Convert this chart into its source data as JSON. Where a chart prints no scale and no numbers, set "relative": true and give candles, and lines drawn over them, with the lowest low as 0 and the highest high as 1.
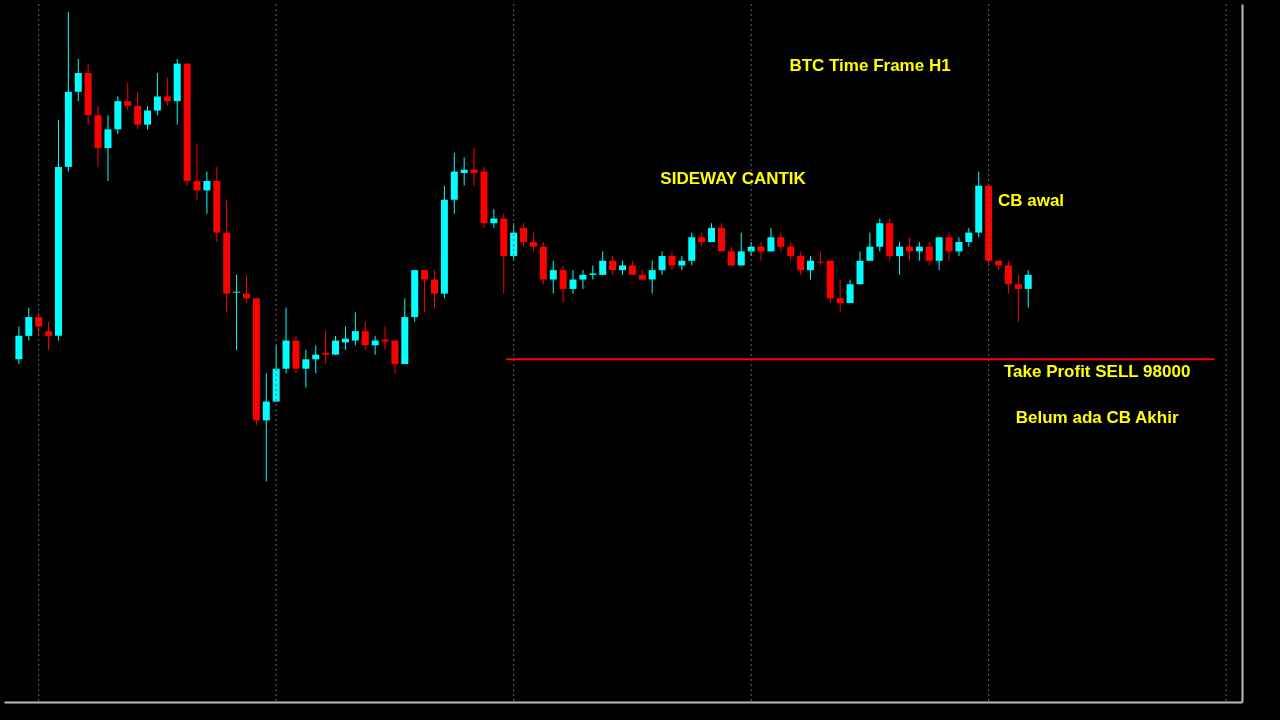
{
  "chart_data": {
    "type": "candlestick",
    "relative": true,
    "title": "BTC Time Frame H1",
    "categories": [
      null,
      null,
      null,
      null,
      null,
      null,
      null,
      null,
      null,
      null,
      null,
      null,
      null,
      null,
      null,
      null,
      null,
      null,
      null,
      null,
      null,
      null,
      null,
      null,
      null,
      null,
      null,
      null,
      null,
      null,
      null,
      null,
      null,
      null,
      null,
      null,
      null,
      null,
      null,
      null,
      null,
      null,
      null,
      null,
      null,
      null,
      null,
      null,
      null,
      null,
      null,
      null,
      null,
      null,
      null,
      null,
      null,
      null,
      null,
      null,
      null,
      null,
      null,
      null,
      null,
      null,
      null,
      null,
      null,
      null,
      null,
      null,
      null,
      null,
      null,
      null,
      null,
      null,
      null,
      null,
      null,
      null,
      null,
      null,
      null,
      null,
      null,
      null,
      null,
      null,
      null,
      null,
      null,
      null,
      null,
      null,
      null,
      null,
      null,
      null,
      null,
      null,
      null
    ],
    "ohlc": [
      [
        0.26,
        0.33,
        0.25,
        0.31
      ],
      [
        0.31,
        0.37,
        0.3,
        0.35
      ],
      [
        0.35,
        0.36,
        0.31,
        0.33
      ],
      [
        0.32,
        0.34,
        0.28,
        0.31
      ],
      [
        0.31,
        0.77,
        0.3,
        0.67
      ],
      [
        0.67,
        1,
        0.66,
        0.83
      ],
      [
        0.83,
        0.9,
        0.81,
        0.87
      ],
      [
        0.87,
        0.89,
        0.76,
        0.78
      ],
      [
        0.78,
        0.8,
        0.67,
        0.71
      ],
      [
        0.71,
        0.78,
        0.64,
        0.75
      ],
      [
        0.75,
        0.82,
        0.74,
        0.81
      ],
      [
        0.81,
        0.85,
        0.79,
        0.8
      ],
      [
        0.8,
        0.83,
        0.75,
        0.76
      ],
      [
        0.76,
        0.8,
        0.75,
        0.79
      ],
      [
        0.79,
        0.87,
        0.78,
        0.82
      ],
      [
        0.82,
        0.86,
        0.8,
        0.81
      ],
      [
        0.81,
        0.9,
        0.76,
        0.89
      ],
      [
        0.89,
        0.89,
        0.63,
        0.64
      ],
      [
        0.64,
        0.72,
        0.6,
        0.62
      ],
      [
        0.62,
        0.66,
        0.57,
        0.64
      ],
      [
        0.64,
        0.67,
        0.51,
        0.53
      ],
      [
        0.53,
        0.6,
        0.36,
        0.4
      ],
      [
        0.402,
        0.44,
        0.28,
        0.404
      ],
      [
        0.4,
        0.44,
        0.38,
        0.39
      ],
      [
        0.39,
        0.39,
        0.12,
        0.13
      ],
      [
        0.13,
        0.23,
        0,
        0.17
      ],
      [
        0.17,
        0.29,
        0.17,
        0.24
      ],
      [
        0.24,
        0.37,
        0.23,
        0.3
      ],
      [
        0.3,
        0.31,
        0.23,
        0.24
      ],
      [
        0.24,
        0.28,
        0.2,
        0.26
      ],
      [
        0.26,
        0.29,
        0.23,
        0.27
      ],
      [
        0.274,
        0.32,
        0.25,
        0.27
      ],
      [
        0.27,
        0.31,
        0.27,
        0.3
      ],
      [
        0.296,
        0.33,
        0.28,
        0.304
      ],
      [
        0.3,
        0.36,
        0.29,
        0.32
      ],
      [
        0.32,
        0.34,
        0.28,
        0.29
      ],
      [
        0.29,
        0.31,
        0.27,
        0.3
      ],
      [
        0.302,
        0.33,
        0.28,
        0.298
      ],
      [
        0.3,
        0.3,
        0.23,
        0.25
      ],
      [
        0.25,
        0.39,
        0.25,
        0.35
      ],
      [
        0.35,
        0.45,
        0.34,
        0.45
      ],
      [
        0.45,
        0.45,
        0.36,
        0.43
      ],
      [
        0.43,
        0.45,
        0.37,
        0.4
      ],
      [
        0.4,
        0.63,
        0.39,
        0.6
      ],
      [
        0.6,
        0.7,
        0.57,
        0.66
      ],
      [
        0.657,
        0.69,
        0.63,
        0.664
      ],
      [
        0.664,
        0.71,
        0.63,
        0.657
      ],
      [
        0.66,
        0.67,
        0.54,
        0.55
      ],
      [
        0.55,
        0.58,
        0.54,
        0.56
      ],
      [
        0.56,
        0.57,
        0.4,
        0.48
      ],
      [
        0.48,
        0.55,
        0.47,
        0.53
      ],
      [
        0.54,
        0.55,
        0.5,
        0.51
      ],
      [
        0.51,
        0.53,
        0.49,
        0.5
      ],
      [
        0.5,
        0.51,
        0.42,
        0.43
      ],
      [
        0.43,
        0.47,
        0.4,
        0.45
      ],
      [
        0.45,
        0.46,
        0.38,
        0.41
      ],
      [
        0.41,
        0.45,
        0.4,
        0.43
      ],
      [
        0.43,
        0.45,
        0.41,
        0.44
      ],
      [
        0.44,
        0.46,
        0.43,
        0.443
      ],
      [
        0.44,
        0.49,
        0.44,
        0.47
      ],
      [
        0.47,
        0.48,
        0.44,
        0.45
      ],
      [
        0.45,
        0.47,
        0.44,
        0.46
      ],
      [
        0.46,
        0.47,
        0.44,
        0.44
      ],
      [
        0.44,
        0.45,
        0.43,
        0.43
      ],
      [
        0.43,
        0.47,
        0.4,
        0.45
      ],
      [
        0.45,
        0.49,
        0.44,
        0.48
      ],
      [
        0.48,
        0.49,
        0.45,
        0.46
      ],
      [
        0.46,
        0.48,
        0.45,
        0.47
      ],
      [
        0.47,
        0.53,
        0.46,
        0.52
      ],
      [
        0.52,
        0.53,
        0.5,
        0.51
      ],
      [
        0.51,
        0.55,
        0.51,
        0.54
      ],
      [
        0.54,
        0.55,
        0.49,
        0.49
      ],
      [
        0.49,
        0.5,
        0.46,
        0.46
      ],
      [
        0.46,
        0.53,
        0.46,
        0.49
      ],
      [
        0.49,
        0.51,
        0.48,
        0.5
      ],
      [
        0.5,
        0.51,
        0.47,
        0.49
      ],
      [
        0.49,
        0.54,
        0.49,
        0.52
      ],
      [
        0.52,
        0.53,
        0.49,
        0.5
      ],
      [
        0.5,
        0.51,
        0.47,
        0.48
      ],
      [
        0.48,
        0.49,
        0.44,
        0.45
      ],
      [
        0.45,
        0.48,
        0.43,
        0.47
      ],
      [
        0.468,
        0.49,
        0.46,
        0.466
      ],
      [
        0.47,
        0.47,
        0.38,
        0.39
      ],
      [
        0.39,
        0.43,
        0.36,
        0.38
      ],
      [
        0.38,
        0.43,
        0.38,
        0.42
      ],
      [
        0.42,
        0.49,
        0.42,
        0.47
      ],
      [
        0.47,
        0.53,
        0.47,
        0.5
      ],
      [
        0.5,
        0.56,
        0.49,
        0.55
      ],
      [
        0.55,
        0.56,
        0.47,
        0.48
      ],
      [
        0.48,
        0.51,
        0.44,
        0.5
      ],
      [
        0.5,
        0.52,
        0.47,
        0.49
      ],
      [
        0.49,
        0.51,
        0.47,
        0.5
      ],
      [
        0.5,
        0.51,
        0.46,
        0.47
      ],
      [
        0.47,
        0.52,
        0.45,
        0.52
      ],
      [
        0.52,
        0.53,
        0.47,
        0.49
      ],
      [
        0.49,
        0.52,
        0.48,
        0.51
      ],
      [
        0.51,
        0.54,
        0.5,
        0.53
      ],
      [
        0.53,
        0.66,
        0.52,
        0.63
      ],
      [
        0.63,
        0.63,
        0.46,
        0.47
      ],
      [
        0.47,
        0.47,
        0.45,
        0.46
      ],
      [
        0.46,
        0.47,
        0.4,
        0.42
      ],
      [
        0.42,
        0.44,
        0.34,
        0.41
      ],
      [
        0.41,
        0.45,
        0.37,
        0.44
      ]
    ],
    "colors": [
      "#00ffff",
      "#00ffff",
      "#ff0000",
      "#ff0000",
      "#00ffff",
      "#00ffff",
      "#00ffff",
      "#ff0000",
      "#ff0000",
      "#00ffff",
      "#00ffff",
      "#ff0000",
      "#ff0000",
      "#00ffff",
      "#00ffff",
      "#ff0000",
      "#00ffff",
      "#ff0000",
      "#ff0000",
      "#00ffff",
      "#ff0000",
      "#ff0000",
      "#00ffff",
      "#ff0000",
      "#ff0000",
      "#00ffff",
      "#00ffff",
      "#00ffff",
      "#ff0000",
      "#00ffff",
      "#00ffff",
      "#ff0000",
      "#00ffff",
      "#00ffff",
      "#00ffff",
      "#ff0000",
      "#00ffff",
      "#ff0000",
      "#ff0000",
      "#00ffff",
      "#00ffff",
      "#ff0000",
      "#ff0000",
      "#00ffff",
      "#00ffff",
      "#00ffff",
      "#ff0000",
      "#ff0000",
      "#00ffff",
      "#ff0000",
      "#00ffff",
      "#ff0000",
      "#ff0000",
      "#ff0000",
      "#00ffff",
      "#ff0000",
      "#00ffff",
      "#00ffff",
      "#00ffff",
      "#00ffff",
      "#ff0000",
      "#00ffff",
      "#ff0000",
      "#ff0000",
      "#00ffff",
      "#00ffff",
      "#ff0000",
      "#00ffff",
      "#00ffff",
      "#ff0000",
      "#00ffff",
      "#ff0000",
      "#ff0000",
      "#00ffff",
      "#00ffff",
      "#ff0000",
      "#00ffff",
      "#ff0000",
      "#ff0000",
      "#ff0000",
      "#00ffff",
      "#ff0000",
      "#ff0000",
      "#ff0000",
      "#00ffff",
      "#00ffff",
      "#00ffff",
      "#00ffff",
      "#ff0000",
      "#00ffff",
      "#ff0000",
      "#00ffff",
      "#ff0000",
      "#00ffff",
      "#ff0000",
      "#00ffff",
      "#00ffff",
      "#00ffff",
      "#ff0000",
      "#ff0000",
      "#ff0000",
      "#ff0000",
      "#00ffff"
    ],
    "ref_lines": [
      {
        "axis": "y",
        "value": 0.26,
        "label": "Take Profit SELL 98000",
        "color": "#ff0000"
      }
    ],
    "annotations": [
      "SIDEWAY CANTIK",
      "CB awal",
      "Belum ada CB Akhir"
    ],
    "grid": "x",
    "legend": false
  }
}
